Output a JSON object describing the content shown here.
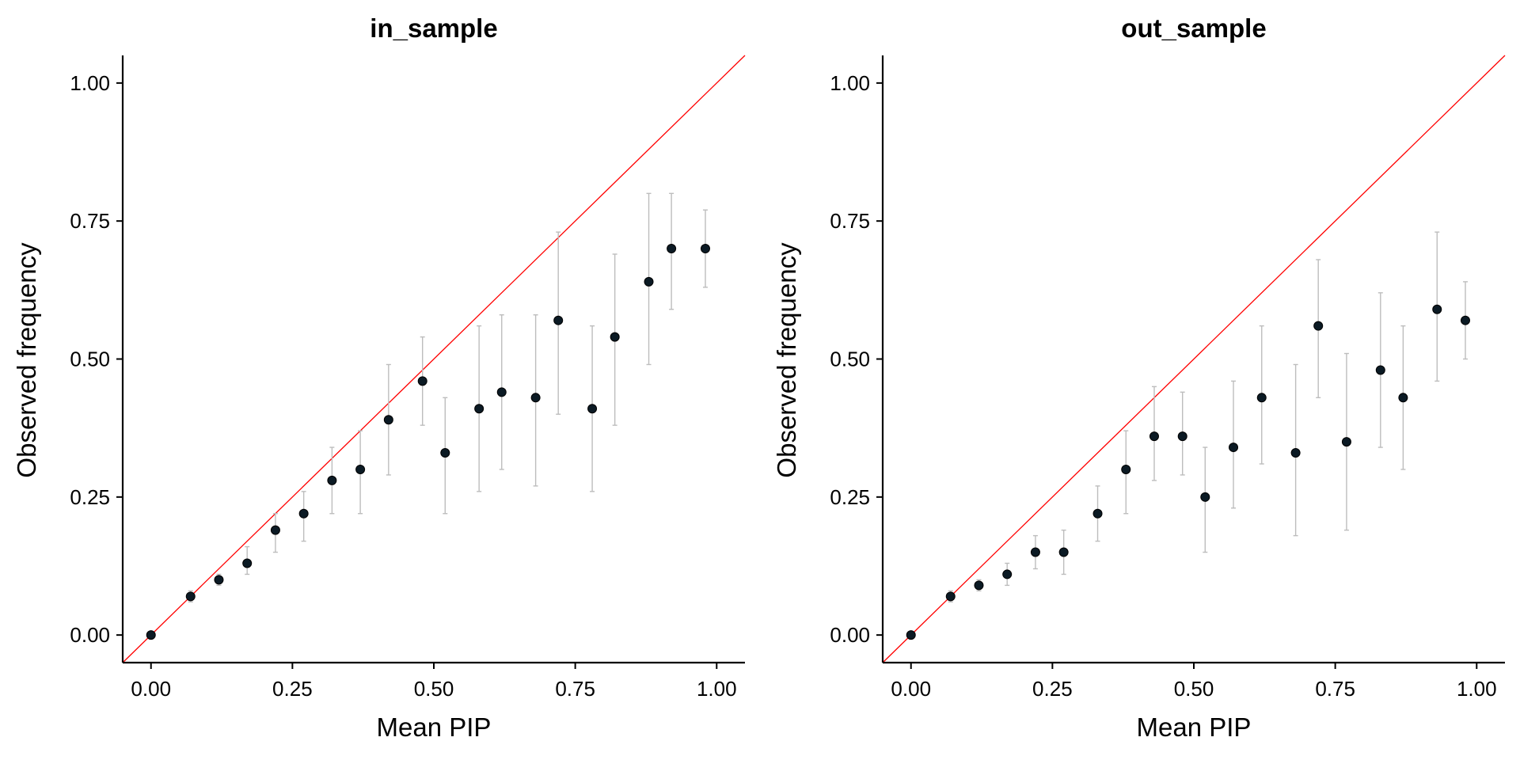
{
  "chart_data": [
    {
      "type": "scatter",
      "title": "in_sample",
      "xlabel": "Mean PIP",
      "ylabel": "Observed frequency",
      "xlim": [
        -0.05,
        1.05
      ],
      "ylim": [
        -0.05,
        1.05
      ],
      "xticks": [
        "0.00",
        "0.25",
        "0.50",
        "0.75",
        "1.00"
      ],
      "yticks": [
        "0.00",
        "0.25",
        "0.50",
        "0.75",
        "1.00"
      ],
      "reference_line": "y = x",
      "points": [
        {
          "x": 0.0,
          "y": 0.0,
          "lo": 0.0,
          "hi": 0.0
        },
        {
          "x": 0.07,
          "y": 0.07,
          "lo": 0.06,
          "hi": 0.08
        },
        {
          "x": 0.12,
          "y": 0.1,
          "lo": 0.09,
          "hi": 0.11
        },
        {
          "x": 0.17,
          "y": 0.13,
          "lo": 0.11,
          "hi": 0.16
        },
        {
          "x": 0.22,
          "y": 0.19,
          "lo": 0.15,
          "hi": 0.22
        },
        {
          "x": 0.27,
          "y": 0.22,
          "lo": 0.17,
          "hi": 0.26
        },
        {
          "x": 0.32,
          "y": 0.28,
          "lo": 0.22,
          "hi": 0.34
        },
        {
          "x": 0.37,
          "y": 0.3,
          "lo": 0.22,
          "hi": 0.37
        },
        {
          "x": 0.42,
          "y": 0.39,
          "lo": 0.29,
          "hi": 0.49
        },
        {
          "x": 0.48,
          "y": 0.46,
          "lo": 0.38,
          "hi": 0.54
        },
        {
          "x": 0.52,
          "y": 0.33,
          "lo": 0.22,
          "hi": 0.43
        },
        {
          "x": 0.58,
          "y": 0.41,
          "lo": 0.26,
          "hi": 0.56
        },
        {
          "x": 0.62,
          "y": 0.44,
          "lo": 0.3,
          "hi": 0.58
        },
        {
          "x": 0.68,
          "y": 0.43,
          "lo": 0.27,
          "hi": 0.58
        },
        {
          "x": 0.72,
          "y": 0.57,
          "lo": 0.4,
          "hi": 0.73
        },
        {
          "x": 0.78,
          "y": 0.41,
          "lo": 0.26,
          "hi": 0.56
        },
        {
          "x": 0.82,
          "y": 0.54,
          "lo": 0.38,
          "hi": 0.69
        },
        {
          "x": 0.88,
          "y": 0.64,
          "lo": 0.49,
          "hi": 0.8
        },
        {
          "x": 0.92,
          "y": 0.7,
          "lo": 0.59,
          "hi": 0.8
        },
        {
          "x": 0.98,
          "y": 0.7,
          "lo": 0.63,
          "hi": 0.77
        }
      ]
    },
    {
      "type": "scatter",
      "title": "out_sample",
      "xlabel": "Mean PIP",
      "ylabel": "Observed frequency",
      "xlim": [
        -0.05,
        1.05
      ],
      "ylim": [
        -0.05,
        1.05
      ],
      "xticks": [
        "0.00",
        "0.25",
        "0.50",
        "0.75",
        "1.00"
      ],
      "yticks": [
        "0.00",
        "0.25",
        "0.50",
        "0.75",
        "1.00"
      ],
      "reference_line": "y = x",
      "points": [
        {
          "x": 0.0,
          "y": 0.0,
          "lo": 0.0,
          "hi": 0.0
        },
        {
          "x": 0.07,
          "y": 0.07,
          "lo": 0.06,
          "hi": 0.08
        },
        {
          "x": 0.12,
          "y": 0.09,
          "lo": 0.08,
          "hi": 0.1
        },
        {
          "x": 0.17,
          "y": 0.11,
          "lo": 0.09,
          "hi": 0.13
        },
        {
          "x": 0.22,
          "y": 0.15,
          "lo": 0.12,
          "hi": 0.18
        },
        {
          "x": 0.27,
          "y": 0.15,
          "lo": 0.11,
          "hi": 0.19
        },
        {
          "x": 0.33,
          "y": 0.22,
          "lo": 0.17,
          "hi": 0.27
        },
        {
          "x": 0.38,
          "y": 0.3,
          "lo": 0.22,
          "hi": 0.37
        },
        {
          "x": 0.43,
          "y": 0.36,
          "lo": 0.28,
          "hi": 0.45
        },
        {
          "x": 0.48,
          "y": 0.36,
          "lo": 0.29,
          "hi": 0.44
        },
        {
          "x": 0.52,
          "y": 0.25,
          "lo": 0.15,
          "hi": 0.34
        },
        {
          "x": 0.57,
          "y": 0.34,
          "lo": 0.23,
          "hi": 0.46
        },
        {
          "x": 0.62,
          "y": 0.43,
          "lo": 0.31,
          "hi": 0.56
        },
        {
          "x": 0.68,
          "y": 0.33,
          "lo": 0.18,
          "hi": 0.49
        },
        {
          "x": 0.72,
          "y": 0.56,
          "lo": 0.43,
          "hi": 0.68
        },
        {
          "x": 0.77,
          "y": 0.35,
          "lo": 0.19,
          "hi": 0.51
        },
        {
          "x": 0.83,
          "y": 0.48,
          "lo": 0.34,
          "hi": 0.62
        },
        {
          "x": 0.87,
          "y": 0.43,
          "lo": 0.3,
          "hi": 0.56
        },
        {
          "x": 0.93,
          "y": 0.59,
          "lo": 0.46,
          "hi": 0.73
        },
        {
          "x": 0.98,
          "y": 0.57,
          "lo": 0.5,
          "hi": 0.64
        }
      ]
    }
  ],
  "colors": {
    "point": "#0b1a24",
    "errorbar": "#bdbdbd",
    "reference": "#ff0000",
    "axis": "#000000"
  }
}
